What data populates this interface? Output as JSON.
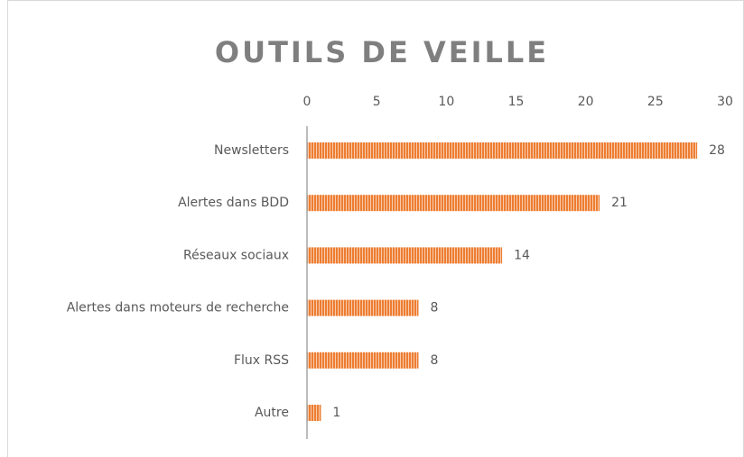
{
  "chart_data": {
    "type": "barh",
    "title": "OUTILS DE VEILLE",
    "categories": [
      "Newsletters",
      "Alertes dans BDD",
      "Réseaux sociaux",
      "Alertes dans moteurs de recherche",
      "Flux RSS",
      "Autre"
    ],
    "values": [
      28,
      21,
      14,
      8,
      8,
      1
    ],
    "color": "#ed7d31",
    "xlim": [
      0,
      30
    ],
    "xticks": [
      0,
      5,
      10,
      15,
      20,
      25,
      30
    ],
    "grid": false
  }
}
